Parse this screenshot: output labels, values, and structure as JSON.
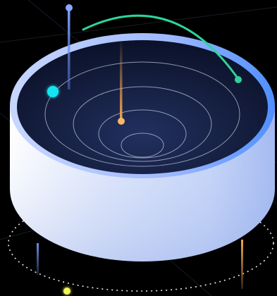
{
  "colors": {
    "background": "#000000",
    "cylinder_light": "#eef1fc",
    "cylinder_mid": "#b3c8f7",
    "cylinder_shadow": "#6f8fe0",
    "rim_top": "#aac4ff",
    "rim_blue": "#4f8fff",
    "bowl_dark": "#0f1631",
    "bowl_deep": "#1f2b52",
    "ring_line": "#b7c3da",
    "pole_orange": "#f7a64a",
    "pole_blue": "#6d8ee8",
    "arc_green": "#2ed39b",
    "dot_cyan": "#16e3f2",
    "dot_yellow": "#f2f55b",
    "dotted_orbit": "#ffffff"
  },
  "icons": {
    "container": "cylinder-bowl-illustration",
    "markers": [
      "blue-pin",
      "orange-pin",
      "green-node",
      "cyan-dot",
      "yellow-dot"
    ]
  }
}
